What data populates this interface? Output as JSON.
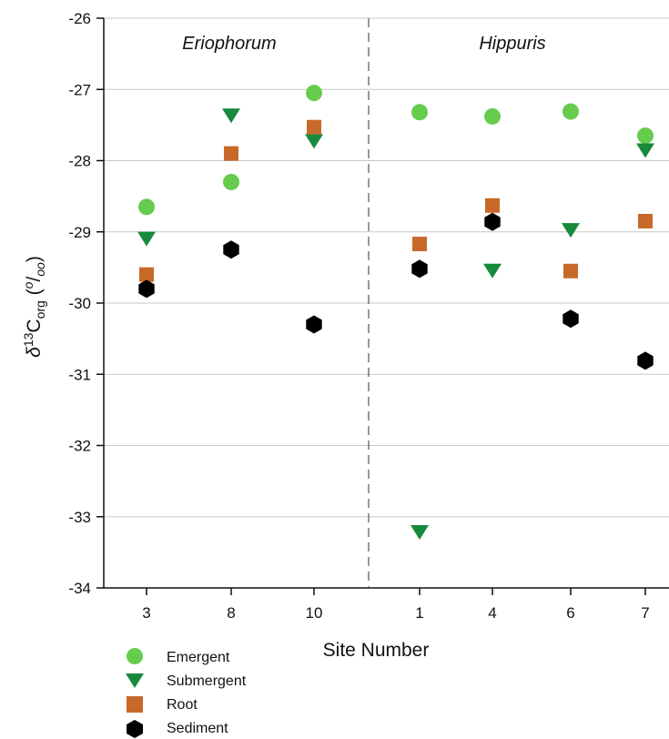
{
  "chart_data": {
    "type": "scatter",
    "title": "",
    "xlabel": "Site Number",
    "ylabel_parts": {
      "delta": "δ",
      "sup13": "13",
      "C": "C",
      "sub_org": "org",
      "open": " (",
      "o": "o",
      "slash": "/",
      "oo": "oo",
      "close": ")"
    },
    "ylim": [
      -34,
      -26
    ],
    "yticks": [
      "-26",
      "-27",
      "-28",
      "-29",
      "-30",
      "-31",
      "-32",
      "-33",
      "-34"
    ],
    "ytick_values": [
      -26,
      -27,
      -28,
      -29,
      -30,
      -31,
      -32,
      -33,
      -34
    ],
    "grid": true,
    "groups": [
      "Eriophorum",
      "Hippuris"
    ],
    "categories": [
      "3",
      "8",
      "10",
      "1",
      "4",
      "6",
      "7"
    ],
    "category_x": [
      3,
      8,
      10,
      1,
      4,
      6,
      7
    ],
    "series": [
      {
        "name": "Emergent",
        "marker": "circle",
        "color": "#66cc4d",
        "points": [
          {
            "x": 3,
            "y": -28.65
          },
          {
            "x": 8,
            "y": -28.3
          },
          {
            "x": 10,
            "y": -27.05
          },
          {
            "x": 1,
            "y": -27.32
          },
          {
            "x": 4,
            "y": -27.38
          },
          {
            "x": 6,
            "y": -27.31
          },
          {
            "x": 7,
            "y": -27.65
          }
        ]
      },
      {
        "name": "Submergent",
        "marker": "triangle-down",
        "color": "#178a3c",
        "points": [
          {
            "x": 3,
            "y": -29.1
          },
          {
            "x": 8,
            "y": -27.37
          },
          {
            "x": 10,
            "y": -27.73
          },
          {
            "x": 1,
            "y": -33.22
          },
          {
            "x": 4,
            "y": -29.55
          },
          {
            "x": 6,
            "y": -28.98
          },
          {
            "x": 7,
            "y": -27.86
          }
        ]
      },
      {
        "name": "Root",
        "marker": "square",
        "color": "#c8692a",
        "points": [
          {
            "x": 3,
            "y": -29.6
          },
          {
            "x": 8,
            "y": -27.9
          },
          {
            "x": 10,
            "y": -27.53
          },
          {
            "x": 1,
            "y": -29.17
          },
          {
            "x": 4,
            "y": -28.63
          },
          {
            "x": 6,
            "y": -29.55
          },
          {
            "x": 7,
            "y": -28.85
          }
        ]
      },
      {
        "name": "Sediment",
        "marker": "hexagon",
        "color": "#000000",
        "points": [
          {
            "x": 3,
            "y": -29.8
          },
          {
            "x": 8,
            "y": -29.25
          },
          {
            "x": 10,
            "y": -30.3
          },
          {
            "x": 1,
            "y": -29.52
          },
          {
            "x": 4,
            "y": -28.86
          },
          {
            "x": 6,
            "y": -30.22
          },
          {
            "x": 7,
            "y": -30.81
          }
        ]
      }
    ],
    "legend_position": "bottom-left"
  }
}
